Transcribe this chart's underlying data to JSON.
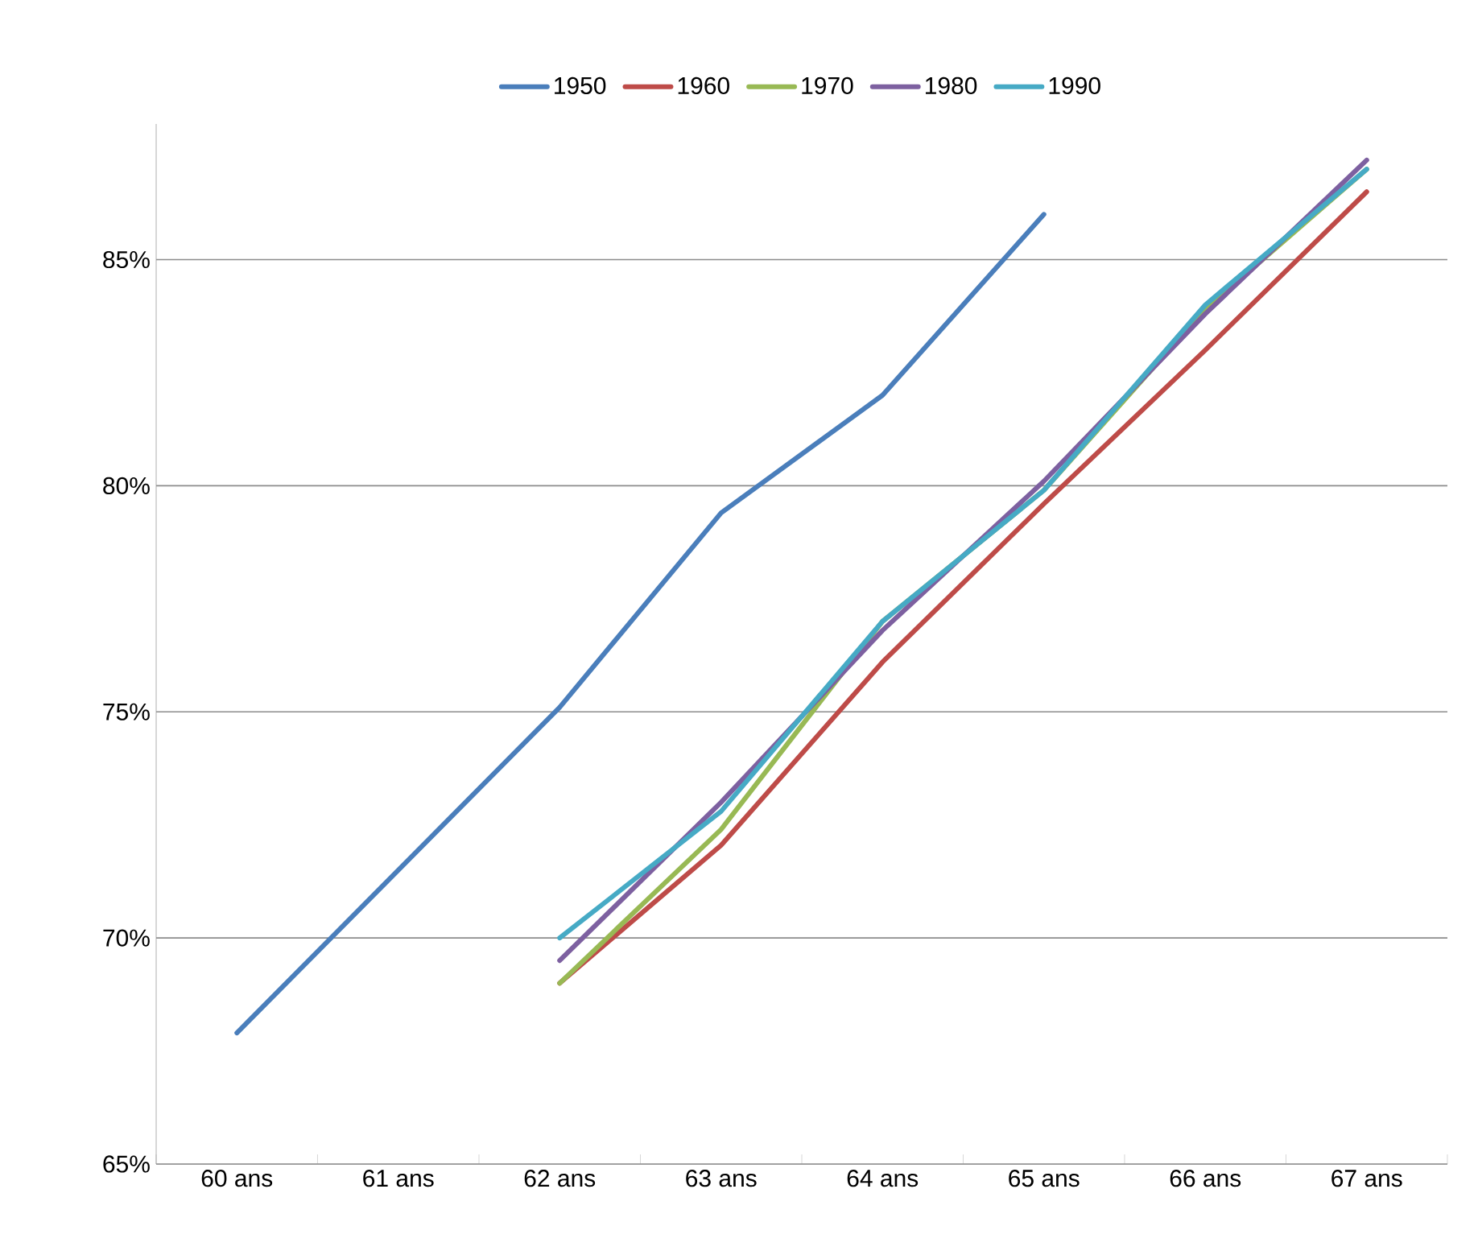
{
  "chart_data": {
    "type": "line",
    "categories": [
      "60 ans",
      "61 ans",
      "62 ans",
      "63 ans",
      "64 ans",
      "65 ans",
      "66 ans",
      "67 ans"
    ],
    "series": [
      {
        "name": "1950",
        "color": "#4a7ebb",
        "values": [
          67.9,
          71.5,
          75.1,
          79.4,
          82.0,
          86.0,
          null,
          null
        ]
      },
      {
        "name": "1960",
        "color": "#be4b48",
        "values": [
          null,
          null,
          69.0,
          72.05,
          76.1,
          79.6,
          83.0,
          86.5
        ]
      },
      {
        "name": "1970",
        "color": "#98b954",
        "values": [
          null,
          null,
          69.0,
          72.4,
          77.0,
          79.9,
          83.9,
          87.0
        ]
      },
      {
        "name": "1980",
        "color": "#7d60a0",
        "values": [
          null,
          null,
          69.5,
          73.0,
          76.8,
          80.1,
          83.8,
          87.2
        ]
      },
      {
        "name": "1990",
        "color": "#46aac5",
        "values": [
          null,
          null,
          70.0,
          72.8,
          77.0,
          79.9,
          84.0,
          87.0
        ]
      }
    ],
    "ylim": [
      65,
      88
    ],
    "yticks": [
      {
        "value": 65,
        "label": "65%"
      },
      {
        "value": 70,
        "label": "70%"
      },
      {
        "value": 75,
        "label": "75%"
      },
      {
        "value": 80,
        "label": "80%"
      },
      {
        "value": 85,
        "label": "85%"
      }
    ],
    "grid": "y",
    "legend": "top",
    "marker": "none",
    "line_style": "solid"
  }
}
